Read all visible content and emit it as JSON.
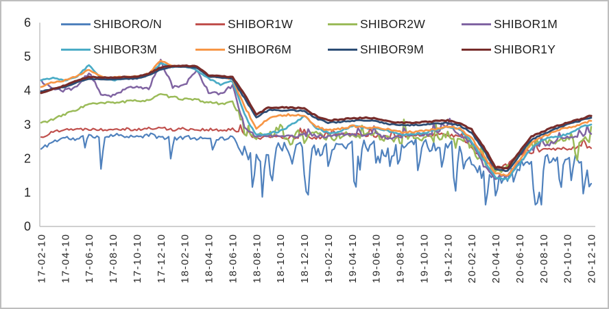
{
  "chart_data": {
    "type": "line",
    "title": "",
    "xlabel": "",
    "ylabel": "",
    "ylim": [
      0,
      6
    ],
    "y_ticks": [
      "0",
      "1",
      "2",
      "3",
      "4",
      "5",
      "6"
    ],
    "x_tick_labels": [
      "17-02-10",
      "17-04-10",
      "17-06-10",
      "17-08-10",
      "17-10-10",
      "17-12-10",
      "18-02-10",
      "18-04-10",
      "18-06-10",
      "18-08-10",
      "18-10-10",
      "18-12-10",
      "19-02-10",
      "19-04-10",
      "19-06-10",
      "19-08-10",
      "19-10-10",
      "19-12-10",
      "20-02-10",
      "20-04-10",
      "20-06-10",
      "20-08-10",
      "20-10-10",
      "20-12-10"
    ],
    "x_tick_label_rotation_deg": -90,
    "values_frequency": "monthly anchors from 2017-02-10 to 2020-12-10 (47 points per series, percent)",
    "months_total": 46,
    "grid": false,
    "legend_position": "top",
    "axis_color": "#bfbfbf",
    "text_color": "#262626",
    "floor_value": 0.64,
    "samples_per_month": 6,
    "series": [
      {
        "name": "SHIBORO/N",
        "color": "#4F81BD",
        "width": 2.2,
        "values": [
          2.28,
          2.5,
          2.62,
          2.55,
          2.7,
          2.62,
          2.7,
          2.68,
          2.62,
          2.7,
          2.62,
          2.6,
          2.62,
          2.6,
          2.62,
          2.58,
          2.62,
          2.2,
          1.95,
          2.25,
          2.3,
          2.35,
          2.4,
          2.2,
          2.3,
          2.4,
          2.45,
          2.4,
          2.35,
          2.2,
          2.3,
          2.45,
          2.4,
          2.35,
          2.4,
          2.3,
          1.9,
          1.5,
          1.4,
          1.45,
          1.8,
          2.0,
          2.0,
          2.05,
          2.0,
          2.0,
          1.55
        ],
        "noise": {
          "seed": 11,
          "split": 16.5,
          "pre": 0.06,
          "post": 0.17,
          "dips": {
            "pre_prob": 0.05,
            "prob": 0.16,
            "min": 0.25,
            "max": 1.15
          }
        }
      },
      {
        "name": "SHIBOR1W",
        "color": "#C0504D",
        "width": 2.2,
        "values": [
          2.62,
          2.78,
          2.88,
          2.85,
          2.88,
          2.85,
          2.88,
          2.88,
          2.85,
          2.88,
          2.9,
          2.85,
          2.88,
          2.85,
          2.85,
          2.82,
          2.85,
          2.7,
          2.6,
          2.65,
          2.62,
          2.62,
          2.65,
          2.62,
          2.62,
          2.7,
          2.7,
          2.68,
          2.68,
          2.62,
          2.65,
          2.7,
          2.7,
          2.7,
          2.7,
          2.62,
          2.3,
          1.95,
          1.7,
          1.8,
          2.1,
          2.2,
          2.25,
          2.25,
          2.3,
          2.35,
          2.35
        ],
        "noise": {
          "seed": 22,
          "split": 16.5,
          "pre": 0.045,
          "post": 0.055,
          "spikes": {
            "prob": 0.06,
            "min": 0.1,
            "max": 0.32,
            "sign": "up"
          }
        }
      },
      {
        "name": "SHIBOR2W",
        "color": "#9BBB59",
        "width": 2.5,
        "values": [
          3.05,
          3.15,
          3.3,
          3.45,
          3.6,
          3.62,
          3.65,
          3.67,
          3.7,
          3.72,
          3.88,
          3.8,
          3.75,
          3.72,
          3.65,
          3.62,
          3.65,
          3.0,
          2.58,
          2.75,
          2.7,
          2.65,
          2.8,
          2.75,
          2.6,
          2.65,
          2.7,
          2.65,
          2.7,
          2.6,
          2.55,
          2.65,
          2.6,
          2.6,
          2.7,
          2.6,
          2.3,
          1.9,
          1.58,
          1.75,
          2.1,
          2.4,
          2.5,
          2.55,
          2.6,
          2.65,
          2.45
        ],
        "noise": {
          "seed": 33,
          "split": 16.5,
          "pre": 0.035,
          "post": 0.12,
          "spikes": {
            "prob": 0.1,
            "min": 0.15,
            "max": 0.5,
            "sign": "both"
          }
        }
      },
      {
        "name": "SHIBOR1M",
        "color": "#8064A2",
        "width": 2.5,
        "values": [
          4.28,
          4.05,
          4.0,
          4.12,
          4.52,
          3.9,
          3.85,
          4.05,
          4.1,
          4.05,
          4.88,
          4.1,
          4.15,
          4.62,
          3.95,
          3.9,
          4.15,
          2.95,
          2.62,
          2.7,
          2.65,
          2.65,
          2.7,
          2.68,
          2.62,
          2.7,
          2.72,
          2.68,
          2.7,
          2.6,
          2.62,
          2.7,
          2.72,
          2.72,
          2.95,
          2.7,
          2.45,
          1.8,
          1.42,
          1.5,
          1.85,
          2.25,
          2.35,
          2.5,
          2.6,
          2.68,
          2.7
        ],
        "noise": {
          "seed": 44,
          "split": 16.5,
          "pre": 0.045,
          "post": 0.05,
          "spikes": {
            "prob": 0.05,
            "min": 0.08,
            "max": 0.3,
            "sign": "up"
          }
        }
      },
      {
        "name": "SHIBOR3M",
        "color": "#4BACC6",
        "width": 2.7,
        "values": [
          4.3,
          4.38,
          4.3,
          4.42,
          4.75,
          4.38,
          4.3,
          4.35,
          4.38,
          4.48,
          4.8,
          4.7,
          4.72,
          4.6,
          4.35,
          4.18,
          4.28,
          3.3,
          2.68,
          2.75,
          2.8,
          3.0,
          3.25,
          2.9,
          2.75,
          2.8,
          2.95,
          2.9,
          2.9,
          2.8,
          2.7,
          2.72,
          2.75,
          2.85,
          2.95,
          2.85,
          2.5,
          1.95,
          1.45,
          1.38,
          1.85,
          2.3,
          2.55,
          2.65,
          2.7,
          2.9,
          3.0
        ],
        "noise": {
          "seed": 55,
          "split": 16.5,
          "pre": 0.02,
          "post": 0.03
        }
      },
      {
        "name": "SHIBOR6M",
        "color": "#F79646",
        "width": 2.7,
        "values": [
          4.12,
          4.25,
          4.3,
          4.42,
          4.62,
          4.42,
          4.38,
          4.4,
          4.42,
          4.5,
          4.88,
          4.72,
          4.72,
          4.68,
          4.42,
          4.4,
          4.35,
          3.55,
          2.88,
          3.18,
          3.28,
          3.28,
          3.25,
          2.95,
          2.82,
          2.88,
          2.95,
          2.92,
          2.92,
          2.85,
          2.78,
          2.78,
          2.82,
          2.88,
          2.95,
          2.88,
          2.6,
          2.1,
          1.55,
          1.5,
          1.95,
          2.45,
          2.65,
          2.8,
          2.9,
          3.0,
          3.12
        ],
        "noise": {
          "seed": 66,
          "split": 16.5,
          "pre": 0.02,
          "post": 0.03
        }
      },
      {
        "name": "SHIBOR9M",
        "color": "#2C4D75",
        "width": 2.8,
        "values": [
          3.98,
          4.05,
          4.1,
          4.25,
          4.35,
          4.33,
          4.33,
          4.35,
          4.35,
          4.45,
          4.62,
          4.7,
          4.7,
          4.68,
          4.42,
          4.38,
          4.35,
          3.78,
          3.22,
          3.42,
          3.42,
          3.42,
          3.4,
          3.18,
          3.05,
          3.08,
          3.1,
          3.12,
          3.1,
          3.02,
          2.98,
          2.98,
          3.0,
          3.03,
          3.05,
          2.98,
          2.75,
          2.25,
          1.68,
          1.62,
          2.1,
          2.55,
          2.72,
          2.88,
          3.0,
          3.1,
          3.2
        ],
        "noise": {
          "seed": 77,
          "split": 16.5,
          "pre": 0.012,
          "post": 0.02
        }
      },
      {
        "name": "SHIBOR1Y",
        "color": "#772C2A",
        "width": 3.2,
        "values": [
          3.92,
          4.05,
          4.15,
          4.3,
          4.4,
          4.38,
          4.38,
          4.4,
          4.4,
          4.5,
          4.68,
          4.73,
          4.73,
          4.72,
          4.45,
          4.42,
          4.4,
          3.9,
          3.28,
          3.5,
          3.5,
          3.5,
          3.47,
          3.25,
          3.12,
          3.15,
          3.18,
          3.2,
          3.18,
          3.1,
          3.05,
          3.05,
          3.07,
          3.1,
          3.12,
          3.05,
          2.85,
          2.35,
          1.75,
          1.7,
          2.2,
          2.65,
          2.8,
          2.95,
          3.05,
          3.15,
          3.27
        ],
        "noise": {
          "seed": 88,
          "split": 16.5,
          "pre": 0.012,
          "post": 0.018
        }
      }
    ]
  }
}
